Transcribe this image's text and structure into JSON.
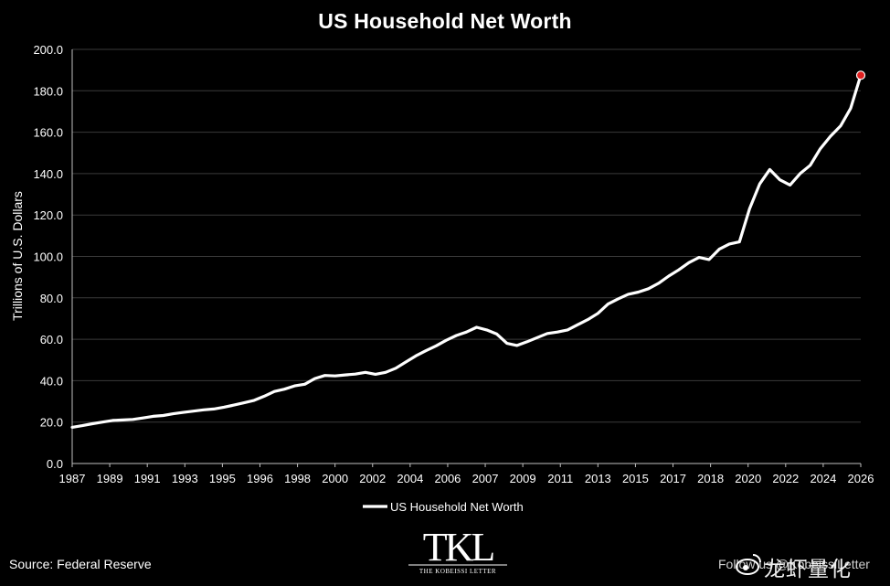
{
  "chart_data": {
    "type": "line",
    "title": "US Household Net Worth",
    "ylabel": "Trillions of U.S. Dollars",
    "xlabel": "",
    "ylim": [
      0,
      200
    ],
    "xlim": [
      1987,
      2026
    ],
    "y_ticks": [
      "0.0",
      "20.0",
      "40.0",
      "60.0",
      "80.0",
      "100.0",
      "120.0",
      "140.0",
      "160.0",
      "180.0",
      "200.0"
    ],
    "x_ticks": [
      "1987",
      "1989",
      "1991",
      "1993",
      "1995",
      "1996",
      "1998",
      "2000",
      "2002",
      "2004",
      "2006",
      "2007",
      "2009",
      "2011",
      "2013",
      "2015",
      "2017",
      "2018",
      "2020",
      "2022",
      "2024",
      "2026"
    ],
    "grid": true,
    "legend_position": "bottom",
    "highlight": {
      "x": 2026.0,
      "y": 187.5,
      "color": "#e02020"
    },
    "series": [
      {
        "name": "US Household Net Worth",
        "color": "#ffffff",
        "x": [
          1987.0,
          1987.5,
          1988.0,
          1988.5,
          1989.0,
          1989.5,
          1990.0,
          1990.5,
          1991.0,
          1991.5,
          1992.0,
          1992.5,
          1993.0,
          1993.5,
          1994.0,
          1994.5,
          1995.0,
          1995.5,
          1996.0,
          1996.5,
          1997.0,
          1997.5,
          1998.0,
          1998.5,
          1999.0,
          1999.5,
          2000.0,
          2000.5,
          2001.0,
          2001.5,
          2002.0,
          2002.5,
          2003.0,
          2003.5,
          2004.0,
          2004.5,
          2005.0,
          2005.5,
          2006.0,
          2006.5,
          2007.0,
          2007.5,
          2008.0,
          2008.5,
          2009.0,
          2009.5,
          2010.0,
          2010.5,
          2011.0,
          2011.5,
          2012.0,
          2012.5,
          2013.0,
          2013.5,
          2014.0,
          2014.5,
          2015.0,
          2015.5,
          2016.0,
          2016.5,
          2017.0,
          2017.5,
          2018.0,
          2018.5,
          2019.0,
          2019.5,
          2020.0,
          2020.5,
          2021.0,
          2021.5,
          2022.0,
          2022.5,
          2023.0,
          2023.5,
          2024.0,
          2024.5,
          2025.0,
          2025.5,
          2026.0
        ],
        "values": [
          17.5,
          18.3,
          19.2,
          20.0,
          20.8,
          21.0,
          21.3,
          22.0,
          22.8,
          23.2,
          24.0,
          24.7,
          25.3,
          25.9,
          26.3,
          27.2,
          28.2,
          29.3,
          30.5,
          32.5,
          34.8,
          35.9,
          37.5,
          38.3,
          41.0,
          42.5,
          42.3,
          42.8,
          43.2,
          44.0,
          43.1,
          44.0,
          46.0,
          49.0,
          52.0,
          54.5,
          56.8,
          59.5,
          61.8,
          63.5,
          65.8,
          64.5,
          62.5,
          58.0,
          57.0,
          58.8,
          60.8,
          62.8,
          63.5,
          64.5,
          67.0,
          69.5,
          72.5,
          77.0,
          79.5,
          81.7,
          82.8,
          84.4,
          87.0,
          90.5,
          93.5,
          97.0,
          99.5,
          98.5,
          103.5,
          106.0,
          107.0,
          123.0,
          135.0,
          142.0,
          137.0,
          134.5,
          140.0,
          144.0,
          152.0,
          158.0,
          163.0,
          171.5,
          187.5
        ]
      }
    ]
  },
  "footer": {
    "source": "Source: Federal Reserve",
    "follow": "Follow us @KobeissiLetter",
    "watermark": "龙虾量化"
  },
  "logo": {
    "mark": "TKL",
    "subtitle": "THE KOBEISSI LETTER"
  }
}
